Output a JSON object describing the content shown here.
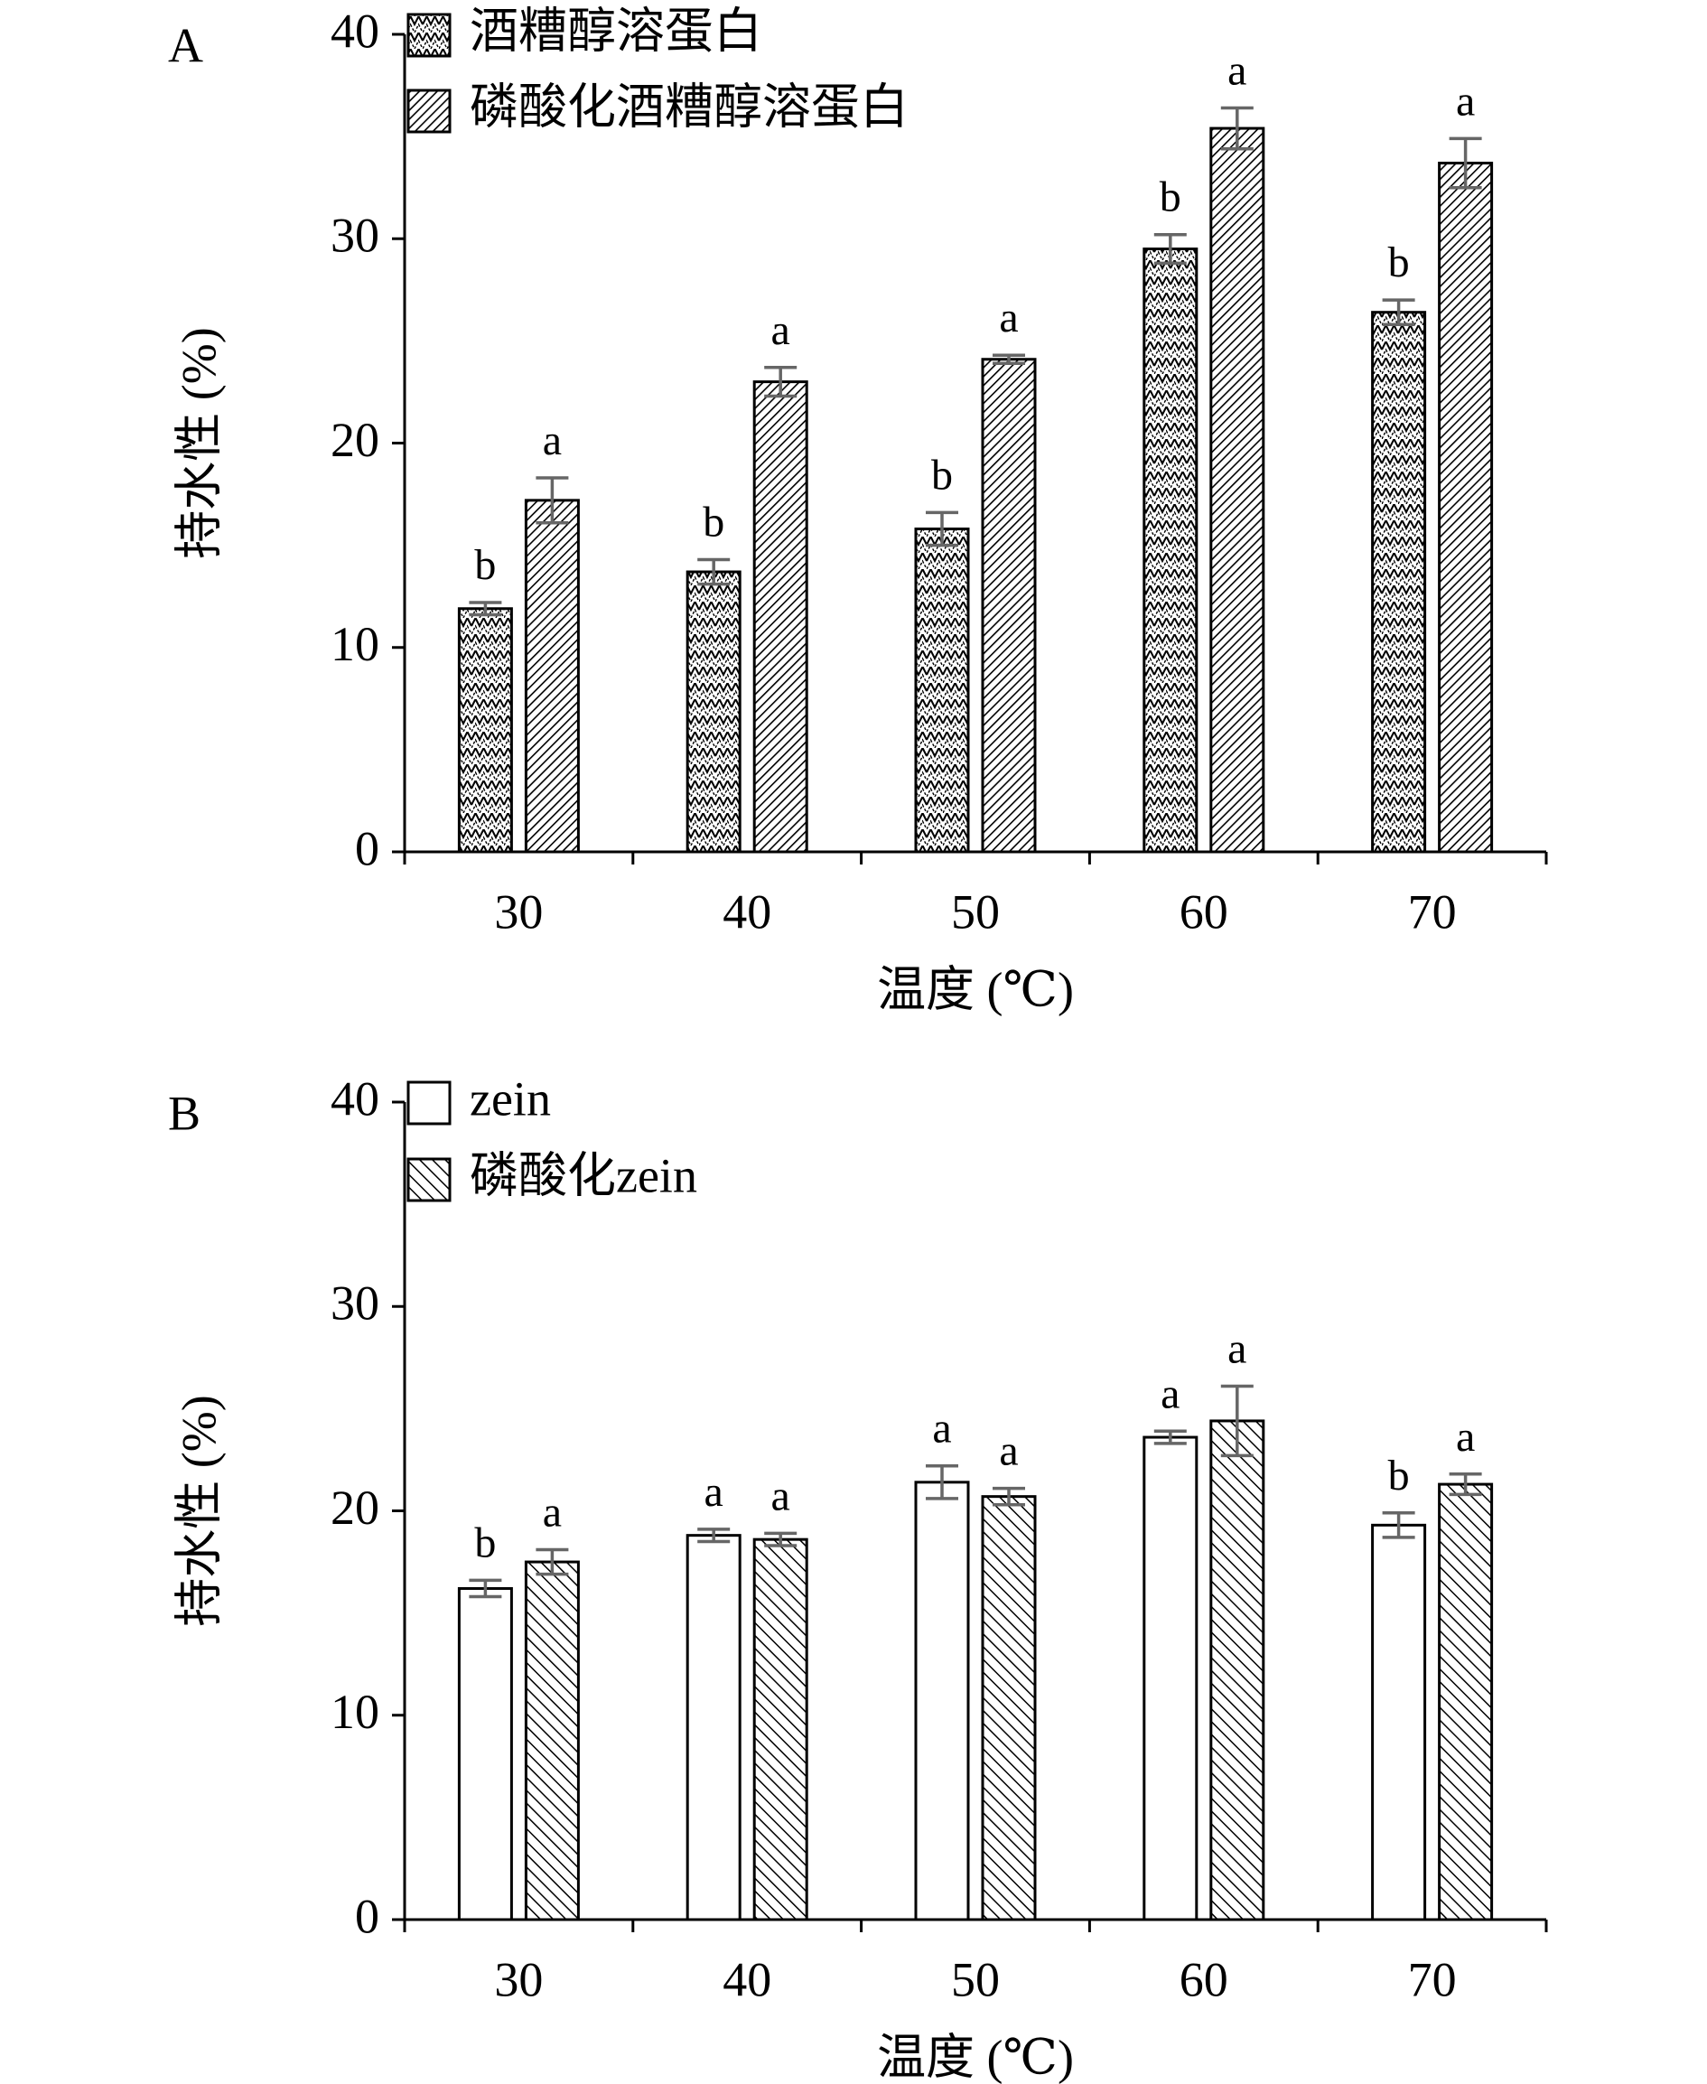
{
  "chart_data": [
    {
      "type": "bar",
      "panel_label": "A",
      "categories": [
        "30",
        "40",
        "50",
        "60",
        "70"
      ],
      "series": [
        {
          "name": "酒糟醇溶蛋白",
          "values": [
            11.9,
            13.7,
            15.8,
            29.5,
            26.4
          ],
          "errors": [
            0.3,
            0.6,
            0.8,
            0.7,
            0.6
          ],
          "labels": [
            "b",
            "b",
            "b",
            "b",
            "b"
          ],
          "pattern": "pattern-zigzag"
        },
        {
          "name": "磷酸化酒糟醇溶蛋白",
          "values": [
            17.2,
            23.0,
            24.1,
            35.4,
            33.7
          ],
          "errors": [
            1.1,
            0.7,
            0.2,
            1.0,
            1.2
          ],
          "labels": [
            "a",
            "a",
            "a",
            "a",
            "a"
          ],
          "pattern": "pattern-dense-diag"
        }
      ],
      "xlabel": "温度 (℃)",
      "ylabel": "持水性 (%)",
      "ylim": [
        0,
        40
      ],
      "yticks": [
        0,
        10,
        20,
        30,
        40
      ],
      "grid": false,
      "legend_position": "top-left"
    },
    {
      "type": "bar",
      "panel_label": "B",
      "categories": [
        "30",
        "40",
        "50",
        "60",
        "70"
      ],
      "series": [
        {
          "name": "zein",
          "values": [
            16.2,
            18.8,
            21.4,
            23.6,
            19.3
          ],
          "errors": [
            0.4,
            0.3,
            0.8,
            0.3,
            0.6
          ],
          "labels": [
            "b",
            "a",
            "a",
            "a",
            "b"
          ],
          "pattern": "none"
        },
        {
          "name": "磷酸化zein",
          "values": [
            17.5,
            18.6,
            20.7,
            24.4,
            21.3
          ],
          "errors": [
            0.6,
            0.3,
            0.4,
            1.7,
            0.5
          ],
          "labels": [
            "a",
            "a",
            "a",
            "a",
            "a"
          ],
          "pattern": "pattern-diag"
        }
      ],
      "xlabel": "温度 (℃)",
      "ylabel": "持水性 (%)",
      "ylim": [
        0,
        40
      ],
      "yticks": [
        0,
        10,
        20,
        30,
        40
      ],
      "grid": false,
      "legend_position": "top-left"
    }
  ],
  "colors": {
    "bar_stroke": "#000000",
    "error_bar": "#666666",
    "background": "#ffffff"
  }
}
